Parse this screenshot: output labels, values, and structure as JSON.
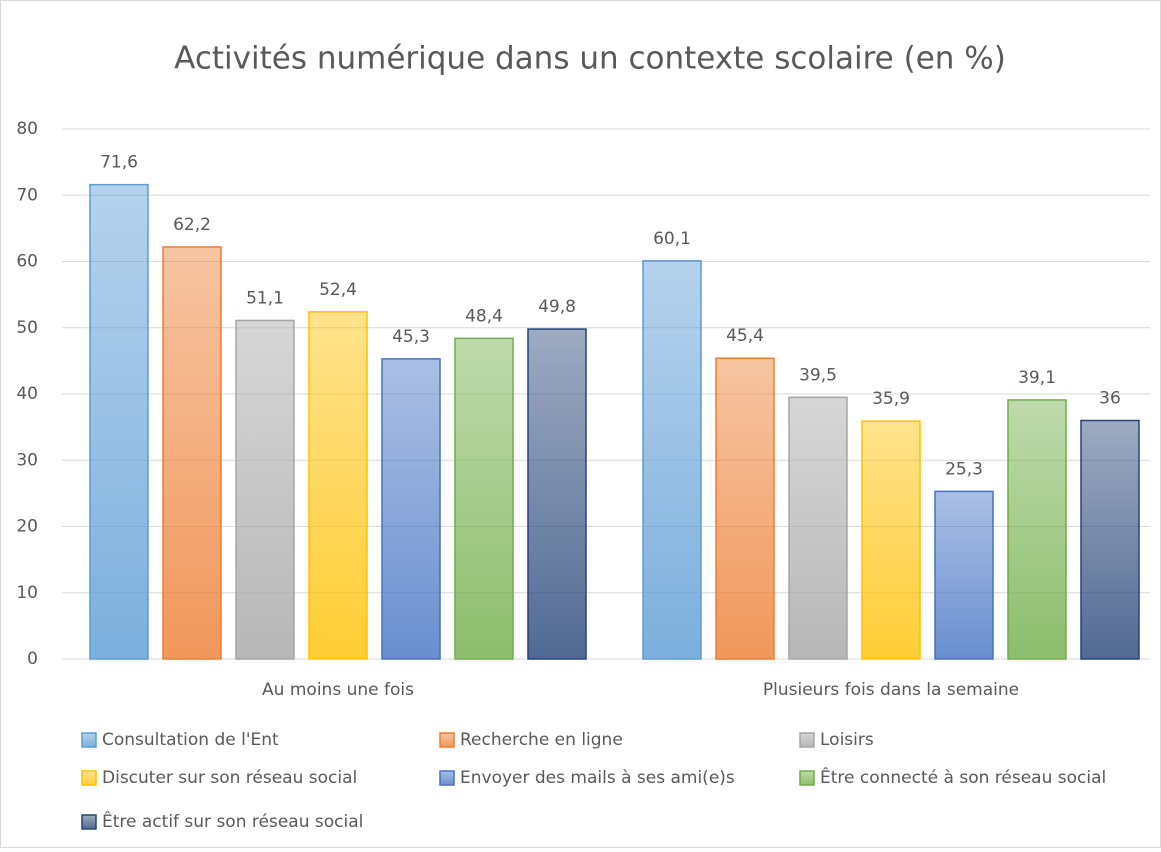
{
  "chart_data": {
    "type": "bar",
    "title": "Activités numérique dans un contexte scolaire (en %)",
    "categories": [
      "Au moins une fois",
      "Plusieurs fois dans la semaine"
    ],
    "series": [
      {
        "name": "Consultation de l'Ent",
        "color": "#5b9bd5",
        "values": [
          71.6,
          60.1
        ],
        "value_labels": [
          "71,6",
          "60,1"
        ]
      },
      {
        "name": "Recherche en ligne",
        "color": "#ed7d31",
        "values": [
          62.2,
          45.4
        ],
        "value_labels": [
          "62,2",
          "45,4"
        ]
      },
      {
        "name": "Loisirs",
        "color": "#a5a5a5",
        "values": [
          51.1,
          39.5
        ],
        "value_labels": [
          "51,1",
          "39,5"
        ]
      },
      {
        "name": "Discuter sur son réseau social",
        "color": "#ffc000",
        "values": [
          52.4,
          35.9
        ],
        "value_labels": [
          "52,4",
          "35,9"
        ]
      },
      {
        "name": "Envoyer des mails à ses ami(e)s",
        "color": "#4472c4",
        "values": [
          45.3,
          25.3
        ],
        "value_labels": [
          "45,3",
          "25,3"
        ]
      },
      {
        "name": "Être connecté à son réseau social",
        "color": "#70ad47",
        "values": [
          48.4,
          39.1
        ],
        "value_labels": [
          "48,4",
          "39,1"
        ]
      },
      {
        "name": "Être actif sur son réseau social",
        "color": "#264478",
        "values": [
          49.8,
          36
        ],
        "value_labels": [
          "49,8",
          "36"
        ]
      }
    ],
    "ylim": [
      0,
      80
    ],
    "yticks": [
      0,
      10,
      20,
      30,
      40,
      50,
      60,
      70,
      80
    ],
    "grid": true,
    "legend": "bottom"
  }
}
